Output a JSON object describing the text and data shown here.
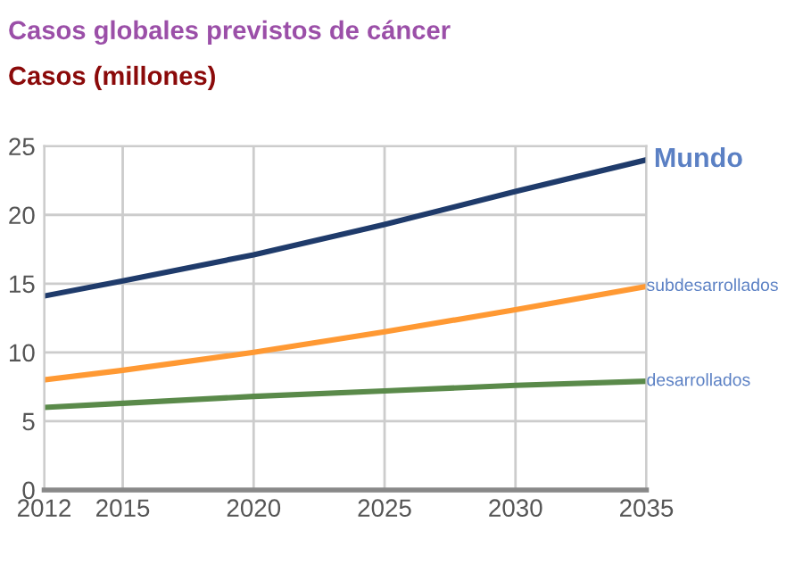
{
  "chart_data": {
    "type": "line",
    "title": "Casos globales previstos de cáncer",
    "ylabel": "Casos (millones)",
    "x": [
      2012,
      2015,
      2020,
      2025,
      2030,
      2035
    ],
    "series": [
      {
        "name": "Mundo",
        "color": "#1f3b6b",
        "values": [
          14.1,
          15.2,
          17.1,
          19.3,
          21.7,
          24.0
        ]
      },
      {
        "name": "subdesarrollados",
        "color": "#ff9933",
        "values": [
          8.0,
          8.7,
          10.0,
          11.5,
          13.1,
          14.8
        ]
      },
      {
        "name": "desarrollados",
        "color": "#5a8a4a",
        "values": [
          6.0,
          6.3,
          6.8,
          7.2,
          7.6,
          7.9
        ]
      }
    ],
    "xlim": [
      2012,
      2035
    ],
    "xticks": [
      2012,
      2015,
      2020,
      2025,
      2030,
      2035
    ],
    "ylim": [
      0,
      25
    ],
    "yticks": [
      0,
      5,
      10,
      15,
      20,
      25
    ],
    "grid": true,
    "legend": false,
    "marker": "none",
    "line_style": "solid"
  }
}
